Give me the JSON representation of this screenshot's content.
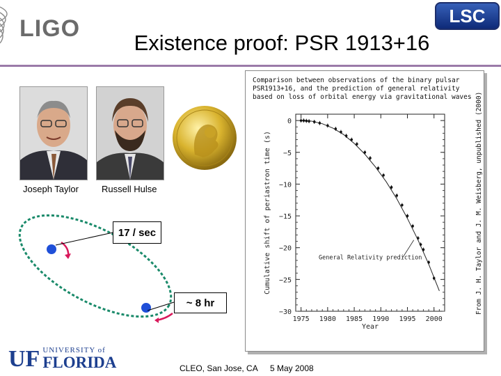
{
  "header": {
    "ligo_logo": "LIGO",
    "lsc_logo": "LSC",
    "title": "Existence proof: PSR 1913+16"
  },
  "photos": [
    {
      "caption": "Joseph Taylor"
    },
    {
      "caption": "Russell Hulse"
    }
  ],
  "orbit": {
    "speed_label": "17 / sec",
    "period_label": "~ 8 hr"
  },
  "chart_data": {
    "type": "scatter",
    "title": "Comparison between observations of the binary pulsar PSR1913+16, and the prediction of general relativity based on loss of orbital energy via gravitational waves",
    "xlabel": "Year",
    "ylabel": "Cumulative shift of periastron time (s)",
    "xlim": [
      1974,
      2002
    ],
    "ylim": [
      -30,
      1
    ],
    "x_ticks": [
      "1975",
      "1980",
      "1985",
      "1990",
      "1995",
      "2000"
    ],
    "y_ticks": [
      "0",
      "−5",
      "−10",
      "−15",
      "−20",
      "−25",
      "−30"
    ],
    "annotation": "General Relativity prediction",
    "credit": "From J. H. Taylor and J. M. Weisberg, unpublished (2000)",
    "series": [
      {
        "name": "General Relativity prediction",
        "kind": "line",
        "x": [
          1975,
          1977,
          1979,
          1981,
          1983,
          1985,
          1987,
          1989,
          1991,
          1993,
          1995,
          1997,
          1999,
          2001
        ],
        "y": [
          0,
          -0.1,
          -0.5,
          -1.2,
          -2.2,
          -3.6,
          -5.3,
          -7.3,
          -9.6,
          -12.3,
          -15.4,
          -18.8,
          -22.6,
          -26.8
        ]
      },
      {
        "name": "observations",
        "kind": "points",
        "x": [
          1975,
          1975.5,
          1976,
          1976.5,
          1977.5,
          1978.5,
          1980,
          1981.5,
          1982.5,
          1983.5,
          1984.5,
          1985.5,
          1987,
          1988,
          1989.5,
          1990.5,
          1992,
          1993,
          1994,
          1995,
          1996,
          1997,
          1997.5,
          1998,
          1999,
          2000
        ],
        "y": [
          0,
          0,
          -0.05,
          -0.1,
          -0.2,
          -0.4,
          -0.8,
          -1.3,
          -1.8,
          -2.4,
          -3.0,
          -3.7,
          -5.0,
          -5.9,
          -7.5,
          -8.6,
          -10.5,
          -11.8,
          -13.3,
          -15.0,
          -16.6,
          -18.5,
          -19.5,
          -20.3,
          -22.3,
          -24.8
        ]
      }
    ]
  },
  "footer": {
    "venue": "CLEO, San Jose, CA",
    "date": "5 May 2008",
    "uf_top": "UNIVERSITY of",
    "uf_name": "FLORIDA",
    "uf_mark": "UF"
  }
}
